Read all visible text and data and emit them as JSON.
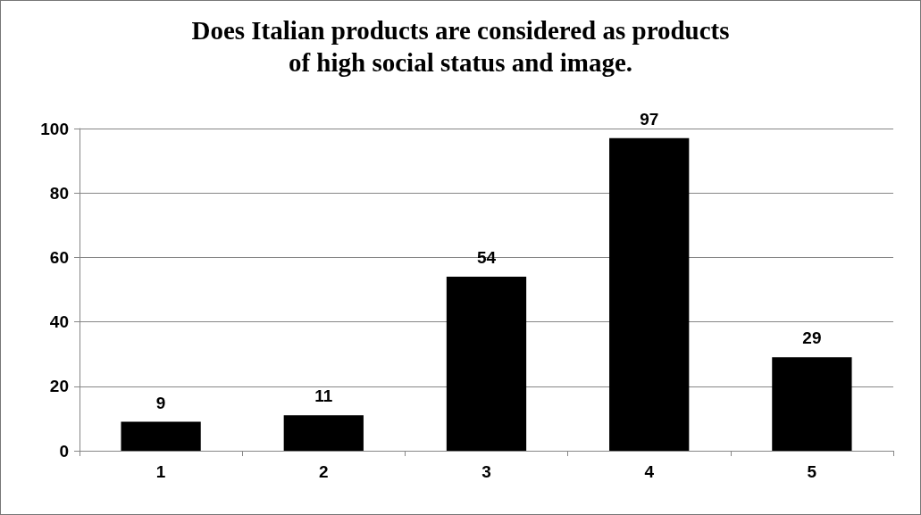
{
  "chart_data": {
    "type": "bar",
    "title": "Does Italian products are considered as products\nof high social status and image.",
    "categories": [
      "1",
      "2",
      "3",
      "4",
      "5"
    ],
    "values": [
      9,
      11,
      54,
      97,
      29
    ],
    "color": "#000000",
    "ylim": [
      0,
      100
    ],
    "yticks": [
      0,
      20,
      40,
      60,
      80,
      100
    ],
    "grid": "y",
    "data_labels": true
  }
}
